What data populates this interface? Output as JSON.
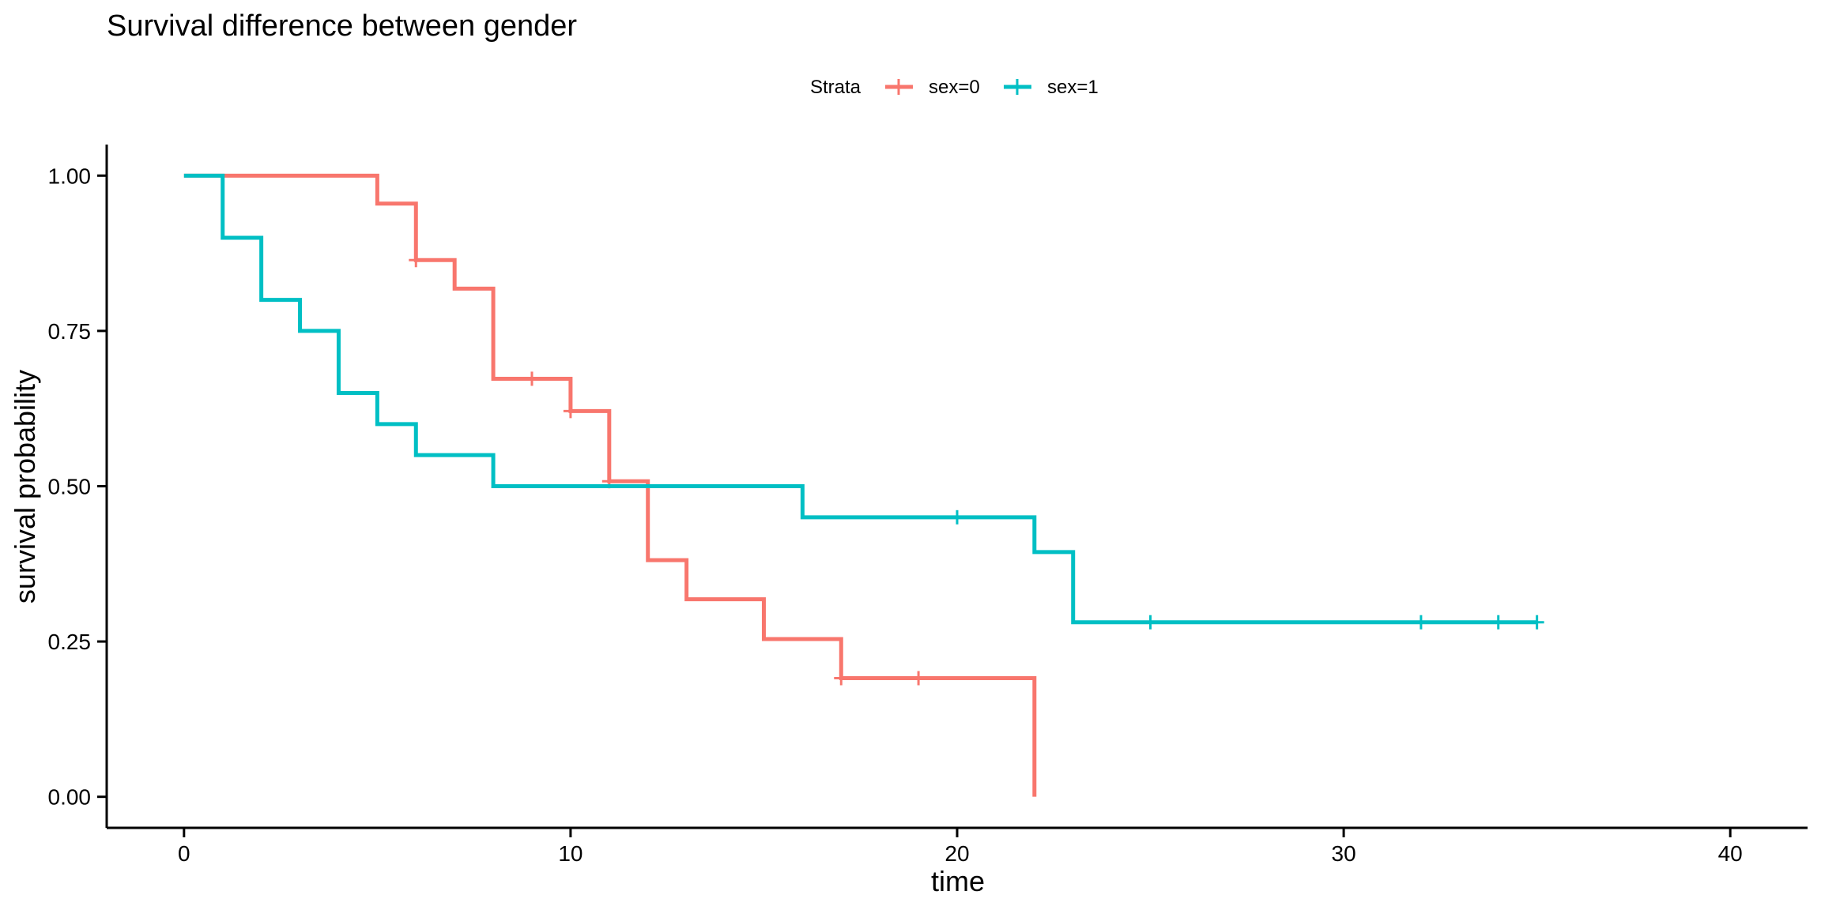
{
  "chart_data": {
    "type": "line",
    "title": "Survival difference between gender",
    "xlabel": "time",
    "ylabel": "survival probability",
    "xlim": [
      -2,
      42
    ],
    "ylim": [
      -0.05,
      1.05
    ],
    "x_ticks": [
      0,
      10,
      20,
      30,
      40
    ],
    "x_tick_labels": [
      "0",
      "10",
      "20",
      "30",
      "40"
    ],
    "y_ticks": [
      0,
      0.25,
      0.5,
      0.75,
      1.0
    ],
    "y_tick_labels": [
      "0.00",
      "0.25",
      "0.50",
      "0.75",
      "1.00"
    ],
    "grid": false,
    "legend": {
      "position": "top",
      "title": "Strata",
      "entries": [
        "sex=0",
        "sex=1"
      ]
    },
    "series": [
      {
        "name": "sex=0",
        "color": "#F8766D",
        "step_points": [
          [
            0,
            1.0
          ],
          [
            5,
            0.955
          ],
          [
            6,
            0.864
          ],
          [
            7,
            0.818
          ],
          [
            8,
            0.673
          ],
          [
            10,
            0.621
          ],
          [
            11,
            0.508
          ],
          [
            12,
            0.381
          ],
          [
            13,
            0.318
          ],
          [
            15,
            0.254
          ],
          [
            17,
            0.191
          ],
          [
            22,
            0.0
          ]
        ],
        "censored": [
          [
            6,
            0.864
          ],
          [
            9,
            0.673
          ],
          [
            10,
            0.621
          ],
          [
            11,
            0.508
          ],
          [
            17,
            0.191
          ],
          [
            19,
            0.191
          ]
        ]
      },
      {
        "name": "sex=1",
        "color": "#00BFC4",
        "step_points": [
          [
            0,
            1.0
          ],
          [
            1,
            0.9
          ],
          [
            2,
            0.8
          ],
          [
            3,
            0.75
          ],
          [
            4,
            0.65
          ],
          [
            5,
            0.6
          ],
          [
            6,
            0.55
          ],
          [
            8,
            0.5
          ],
          [
            16,
            0.45
          ],
          [
            22,
            0.394
          ],
          [
            23,
            0.281
          ],
          [
            35,
            0.281
          ]
        ],
        "censored": [
          [
            20,
            0.45
          ],
          [
            25,
            0.281
          ],
          [
            32,
            0.281
          ],
          [
            34,
            0.281
          ],
          [
            35,
            0.281
          ]
        ]
      }
    ]
  }
}
